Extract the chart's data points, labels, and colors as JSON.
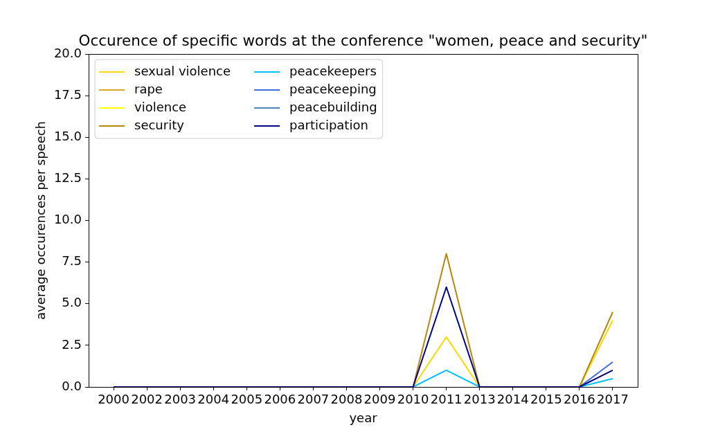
{
  "chart_data": {
    "type": "line",
    "title": "Occurence of specific words at the conference \"women, peace and security\"",
    "xlabel": "year",
    "ylabel": "average occurences per speech",
    "categories": [
      "2000",
      "2002",
      "2003",
      "2004",
      "2005",
      "2006",
      "2007",
      "2008",
      "2009",
      "2010",
      "2011",
      "2013",
      "2014",
      "2015",
      "2016",
      "2017"
    ],
    "series": [
      {
        "name": "sexual violence",
        "color": "#ffd700",
        "values": [
          null,
          null,
          null,
          null,
          null,
          null,
          null,
          null,
          null,
          0,
          3,
          0,
          null,
          null,
          0,
          4
        ]
      },
      {
        "name": "rape",
        "color": "#daa520",
        "values": [
          null,
          null,
          null,
          null,
          null,
          null,
          null,
          null,
          null,
          null,
          null,
          null,
          null,
          null,
          null,
          null
        ]
      },
      {
        "name": "violence",
        "color": "#ffff00",
        "values": [
          null,
          null,
          null,
          null,
          null,
          null,
          null,
          null,
          null,
          null,
          null,
          null,
          null,
          null,
          null,
          null
        ]
      },
      {
        "name": "security",
        "color": "#b8860b",
        "values": [
          null,
          null,
          null,
          null,
          null,
          null,
          null,
          null,
          null,
          0,
          8,
          0,
          null,
          null,
          0,
          4.5
        ]
      },
      {
        "name": "peacekeepers",
        "color": "#00bfff",
        "values": [
          null,
          null,
          null,
          null,
          null,
          null,
          null,
          null,
          null,
          0,
          1,
          0,
          null,
          null,
          0,
          0.5
        ]
      },
      {
        "name": "peacekeeping",
        "color": "#4169e1",
        "values": [
          null,
          null,
          null,
          null,
          null,
          null,
          null,
          null,
          null,
          null,
          null,
          null,
          null,
          null,
          0,
          1.5
        ]
      },
      {
        "name": "peacebuilding",
        "color": "#4682b4",
        "values": [
          null,
          null,
          null,
          null,
          null,
          null,
          null,
          null,
          null,
          null,
          null,
          null,
          null,
          null,
          null,
          null
        ]
      },
      {
        "name": "participation",
        "color": "#000080",
        "values": [
          0,
          0,
          0,
          0,
          0,
          0,
          0,
          0,
          0,
          0,
          6,
          0,
          0,
          0,
          0,
          1
        ]
      }
    ],
    "ylim": [
      0,
      20
    ],
    "yticks": [
      {
        "value": 0,
        "label": "0.0"
      },
      {
        "value": 2.5,
        "label": "2.5"
      },
      {
        "value": 5,
        "label": "5.0"
      },
      {
        "value": 7.5,
        "label": "7.5"
      },
      {
        "value": 10,
        "label": "10.0"
      },
      {
        "value": 12.5,
        "label": "12.5"
      },
      {
        "value": 15,
        "label": "15.0"
      },
      {
        "value": 17.5,
        "label": "17.5"
      },
      {
        "value": 20,
        "label": "20.0"
      }
    ],
    "legend": "top left"
  }
}
